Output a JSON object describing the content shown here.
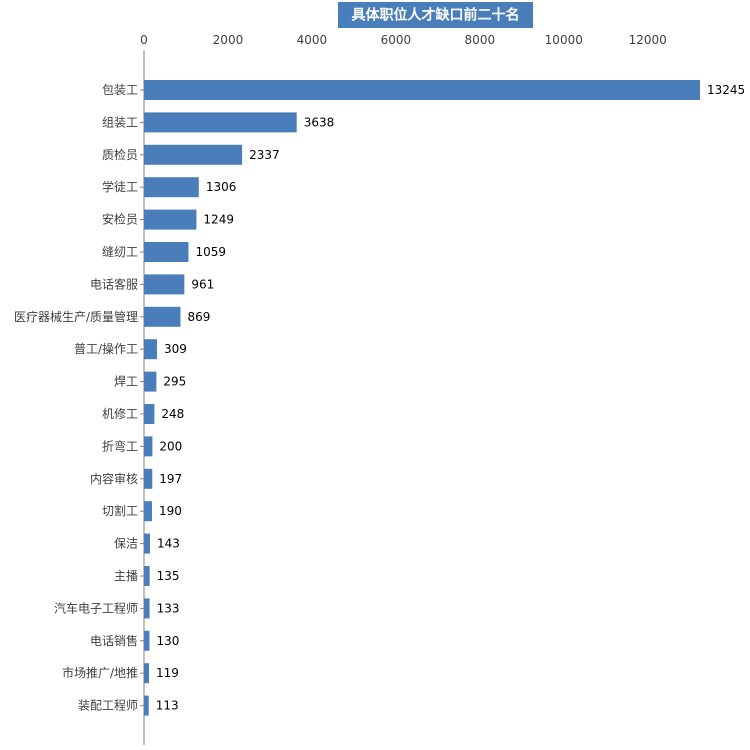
{
  "chart_data": {
    "type": "bar",
    "orientation": "horizontal",
    "title": "具体职位人才缺口前二十名",
    "categories": [
      "包装工",
      "组装工",
      "质检员",
      "学徒工",
      "安检员",
      "缝纫工",
      "电话客服",
      "医疗器械生产/质量管理",
      "普工/操作工",
      "焊工",
      "机修工",
      "折弯工",
      "内容审核",
      "切割工",
      "保洁",
      "主播",
      "汽车电子工程师",
      "电话销售",
      "市场推广/地推",
      "装配工程师"
    ],
    "values": [
      13245,
      3638,
      2337,
      1306,
      1249,
      1059,
      961,
      869,
      309,
      295,
      248,
      200,
      197,
      190,
      143,
      135,
      133,
      130,
      119,
      113
    ],
    "xlim": [
      0,
      13245
    ],
    "xticks": [
      0,
      2000,
      4000,
      6000,
      8000,
      10000,
      12000
    ],
    "x_axis_position": "top",
    "grid": false,
    "legend": "none",
    "bar_color": "#4a7ebb"
  }
}
